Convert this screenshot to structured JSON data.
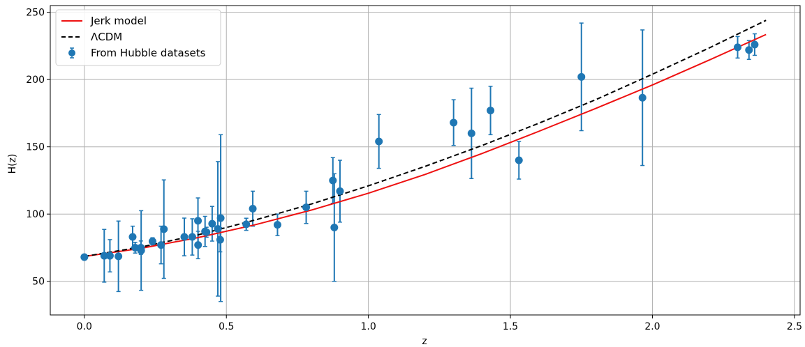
{
  "chart_data": {
    "type": "scatter",
    "xlabel": "z",
    "ylabel": "H(z)",
    "xlim": [
      -0.12,
      2.52
    ],
    "ylim": [
      25,
      255
    ],
    "x_ticks": [
      0.0,
      0.5,
      1.0,
      1.5,
      2.0,
      2.5
    ],
    "x_tick_labels": [
      "0.0",
      "0.5",
      "1.0",
      "1.5",
      "2.0",
      "2.5"
    ],
    "y_ticks": [
      50,
      100,
      150,
      200,
      250
    ],
    "y_tick_labels": [
      "50",
      "100",
      "150",
      "200",
      "250"
    ],
    "grid": true,
    "legend_position": "top-left",
    "legend": [
      {
        "label": "Jerk model",
        "style": "solid",
        "color": "#e41a1c"
      },
      {
        "label": "ΛCDM",
        "style": "dashed",
        "color": "#000000"
      },
      {
        "label": "From Hubble datasets",
        "style": "errorbar",
        "color": "#1f77b4"
      }
    ],
    "series": [
      {
        "name": "Jerk model",
        "kind": "line",
        "color": "#ee1111",
        "x": [
          0.0,
          0.2,
          0.4,
          0.6,
          0.8,
          1.0,
          1.2,
          1.4,
          1.6,
          1.8,
          2.0,
          2.2,
          2.4
        ],
        "y": [
          68.5,
          74.5,
          82.5,
          92.0,
          103.0,
          115.5,
          129.5,
          145.0,
          161.5,
          178.5,
          196.0,
          214.5,
          233.5
        ]
      },
      {
        "name": "ΛCDM",
        "kind": "line",
        "style": "dashed",
        "color": "#000000",
        "x": [
          0.0,
          0.2,
          0.4,
          0.6,
          0.8,
          1.0,
          1.2,
          1.4,
          1.6,
          1.8,
          2.0,
          2.2,
          2.4
        ],
        "y": [
          68.5,
          75.5,
          84.5,
          95.5,
          107.5,
          121.0,
          135.5,
          151.0,
          167.5,
          185.0,
          204.0,
          223.5,
          244.0
        ]
      },
      {
        "name": "From Hubble datasets",
        "kind": "errorbar",
        "color": "#1f77b4",
        "points": [
          {
            "x": 0.0,
            "y": 68,
            "err": 0
          },
          {
            "x": 0.07,
            "y": 69,
            "err": 19.6
          },
          {
            "x": 0.09,
            "y": 69,
            "err": 12
          },
          {
            "x": 0.12,
            "y": 68.6,
            "err": 26.2
          },
          {
            "x": 0.17,
            "y": 83,
            "err": 8
          },
          {
            "x": 0.179,
            "y": 75,
            "err": 4
          },
          {
            "x": 0.199,
            "y": 75,
            "err": 5
          },
          {
            "x": 0.2,
            "y": 72.9,
            "err": 29.6
          },
          {
            "x": 0.24,
            "y": 79.7,
            "err": 2.7
          },
          {
            "x": 0.27,
            "y": 77,
            "err": 14
          },
          {
            "x": 0.28,
            "y": 88.8,
            "err": 36.6
          },
          {
            "x": 0.352,
            "y": 83,
            "err": 14
          },
          {
            "x": 0.38,
            "y": 83,
            "err": 13.5
          },
          {
            "x": 0.4,
            "y": 95,
            "err": 17
          },
          {
            "x": 0.4004,
            "y": 77,
            "err": 10.2
          },
          {
            "x": 0.425,
            "y": 87.1,
            "err": 11.2
          },
          {
            "x": 0.43,
            "y": 86.5,
            "err": 3.7
          },
          {
            "x": 0.45,
            "y": 92.8,
            "err": 12.9
          },
          {
            "x": 0.47,
            "y": 89,
            "err": 50
          },
          {
            "x": 0.4783,
            "y": 80.9,
            "err": 9
          },
          {
            "x": 0.48,
            "y": 97,
            "err": 62
          },
          {
            "x": 0.57,
            "y": 92.4,
            "err": 4.5
          },
          {
            "x": 0.593,
            "y": 104,
            "err": 13
          },
          {
            "x": 0.68,
            "y": 92,
            "err": 8
          },
          {
            "x": 0.781,
            "y": 105,
            "err": 12
          },
          {
            "x": 0.875,
            "y": 125,
            "err": 17
          },
          {
            "x": 0.88,
            "y": 90,
            "err": 40
          },
          {
            "x": 0.9,
            "y": 117,
            "err": 23
          },
          {
            "x": 1.037,
            "y": 154,
            "err": 20
          },
          {
            "x": 1.3,
            "y": 168,
            "err": 17
          },
          {
            "x": 1.363,
            "y": 160,
            "err": 33.6
          },
          {
            "x": 1.43,
            "y": 177,
            "err": 18
          },
          {
            "x": 1.53,
            "y": 140,
            "err": 14
          },
          {
            "x": 1.75,
            "y": 202,
            "err": 40
          },
          {
            "x": 1.965,
            "y": 186.5,
            "err": 50.4
          },
          {
            "x": 2.3,
            "y": 224,
            "err": 8
          },
          {
            "x": 2.34,
            "y": 222,
            "err": 7
          },
          {
            "x": 2.36,
            "y": 226,
            "err": 8
          }
        ]
      }
    ]
  }
}
